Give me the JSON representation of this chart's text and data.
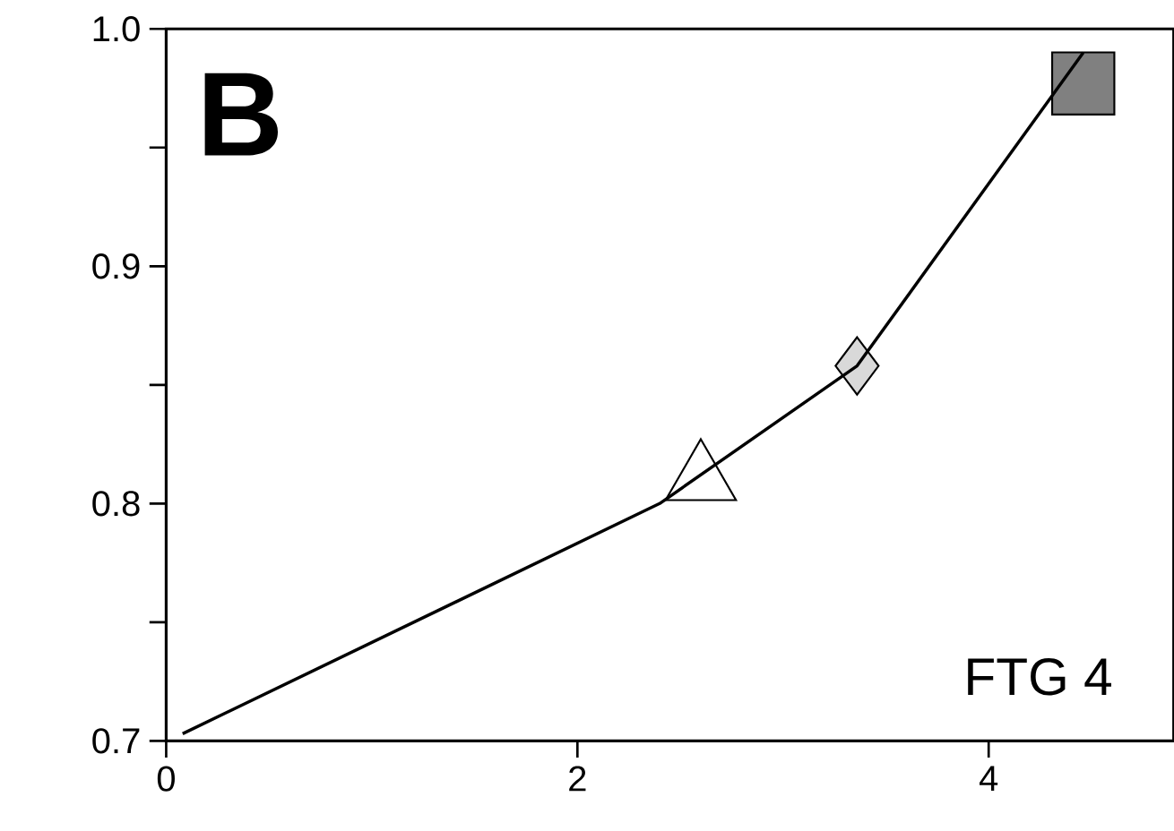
{
  "chart_data": {
    "type": "line",
    "series": [
      {
        "color": "#000000",
        "marker": "none",
        "x": [
          0.08,
          2.4,
          3.36,
          4.46
        ],
        "values": [
          0.703,
          0.8,
          0.858,
          0.99
        ]
      },
      {
        "type": "scatter",
        "color": "#ffffff",
        "marker": "triangle",
        "x": [
          2.6
        ],
        "values": [
          0.81
        ]
      },
      {
        "type": "scatter",
        "color": "#d9d9d9",
        "marker": "diamond",
        "x": [
          3.36
        ],
        "values": [
          0.858
        ]
      },
      {
        "type": "scatter",
        "color": "#808080",
        "marker": "square",
        "x": [
          4.46
        ],
        "values": [
          0.977
        ]
      }
    ],
    "xlim": [
      0,
      4.9
    ],
    "ylim": [
      0.7,
      1.0
    ],
    "xticks": [
      0,
      2,
      4
    ],
    "yticks": [
      0.7,
      {
        "value": 0.75,
        "label": null
      },
      0.8,
      {
        "value": 0.85,
        "label": null
      },
      0.9,
      {
        "value": 0.95,
        "label": null
      },
      {
        "value": 1.0,
        "label": "1.0"
      }
    ],
    "annotations": [
      "B",
      "FTG 4"
    ],
    "grid": false
  }
}
